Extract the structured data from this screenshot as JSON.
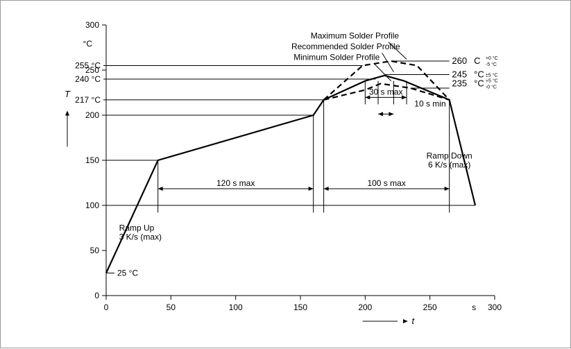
{
  "chart_data": {
    "type": "line",
    "xlim": [
      0,
      300
    ],
    "ylim": [
      0,
      300
    ],
    "x_ticks": [
      0,
      50,
      100,
      150,
      200,
      250,
      300
    ],
    "x_tick_labels": [
      "0",
      "50",
      "100",
      "150",
      "200",
      "250",
      "300"
    ],
    "y_ticks": [
      0,
      50,
      100,
      150,
      200,
      250,
      300
    ],
    "y_tick_labels": [
      "0",
      "50",
      "100",
      "150",
      "200",
      "250",
      "300"
    ],
    "x_unit": "s",
    "y_unit": "°C",
    "xlabel": "t",
    "ylabel": "T",
    "grid": false,
    "series": [
      {
        "name": "Recommended Solder Profile",
        "style": "solid",
        "points": [
          [
            0,
            25
          ],
          [
            40,
            150
          ],
          [
            160,
            200
          ],
          [
            168,
            217
          ],
          [
            200,
            238
          ],
          [
            215,
            244
          ],
          [
            230,
            238
          ],
          [
            265,
            217
          ],
          [
            285,
            100
          ]
        ]
      },
      {
        "name": "Maximum Solder Profile",
        "style": "dashed",
        "points": [
          [
            168,
            217
          ],
          [
            198,
            255
          ],
          [
            220,
            260
          ],
          [
            240,
            255
          ],
          [
            265,
            217
          ]
        ]
      },
      {
        "name": "Minimum Solder Profile",
        "style": "dashed",
        "points": [
          [
            168,
            217
          ],
          [
            200,
            228
          ],
          [
            212,
            235
          ],
          [
            235,
            230
          ],
          [
            265,
            217
          ]
        ]
      }
    ],
    "reference_levels": [
      {
        "y": 255,
        "label": "255 °C"
      },
      {
        "y": 240,
        "label": "240 °C"
      },
      {
        "y": 217,
        "label": "217 °C"
      },
      {
        "y": 25,
        "label": "25 °C"
      }
    ],
    "right_labels": [
      {
        "y": 260,
        "value": "260",
        "unit": "C",
        "tol_plus": "+0 °C",
        "tol_minus": "-5 °C"
      },
      {
        "y": 245,
        "value": "245",
        "unit": "°C",
        "tol": "±5 °C"
      },
      {
        "y": 235,
        "value": "235",
        "unit": "°C",
        "tol_plus": "+5 °C",
        "tol_minus": "-0 °C"
      }
    ],
    "annotations": {
      "max_profile": "Maximum Solder Profile",
      "rec_profile": "Recommended Solder Profile",
      "min_profile": "Minimum Solder Profile",
      "span_120": "120 s max",
      "span_100": "100 s max",
      "span_30": "30 s max",
      "span_10": "10 s min",
      "ramp_up_1": "Ramp Up",
      "ramp_up_2": "3 K/s (max)",
      "ramp_down_1": "Ramp Down",
      "ramp_down_2": "6 K/s (max)"
    }
  }
}
